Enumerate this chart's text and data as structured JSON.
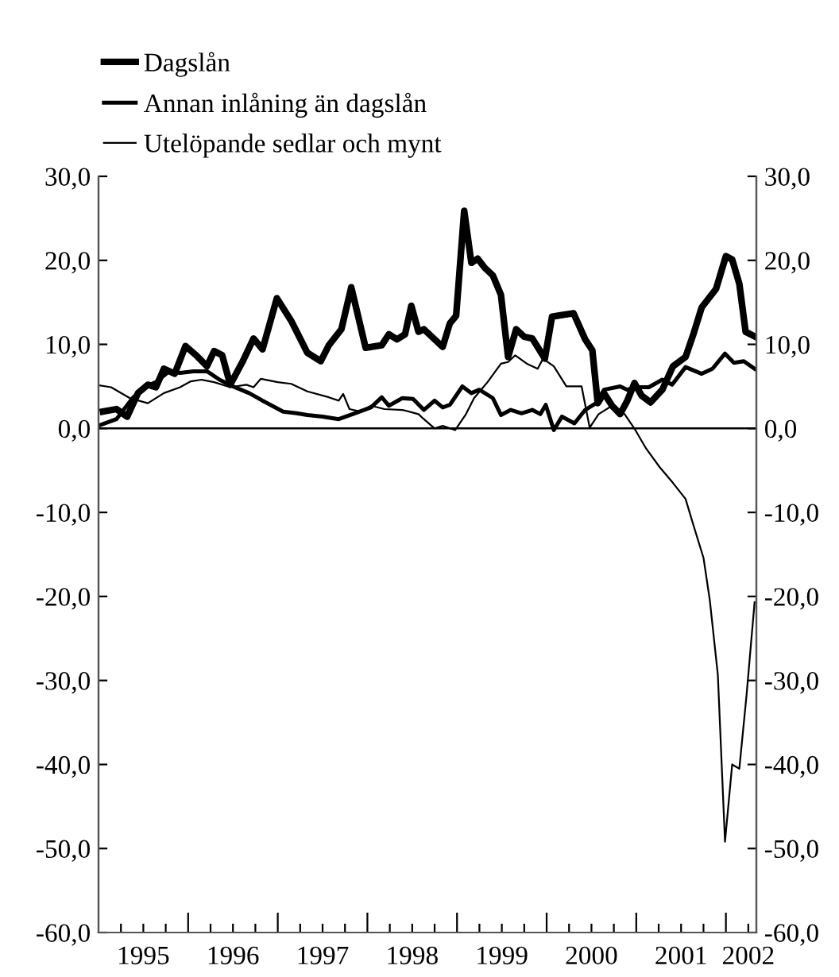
{
  "chart_data": {
    "type": "line",
    "series": [
      {
        "name": "Dagslån",
        "color": "#000000",
        "x": [
          1995.05,
          1995.2,
          1995.32,
          1995.44,
          1995.55,
          1995.64,
          1995.73,
          1995.85,
          1995.97,
          1996.09,
          1996.21,
          1996.29,
          1996.38,
          1996.47,
          1996.61,
          1996.73,
          1996.83,
          1996.99,
          1997.15,
          1997.33,
          1997.48,
          1997.57,
          1997.71,
          1997.82,
          1997.98,
          1998.16,
          1998.24,
          1998.33,
          1998.42,
          1998.49,
          1998.57,
          1998.63,
          1998.84,
          1998.92,
          1998.99,
          1999.08,
          1999.16,
          1999.23,
          1999.31,
          1999.4,
          1999.49,
          1999.57,
          1999.66,
          1999.75,
          1999.84,
          1999.98,
          2000.06,
          2000.17,
          2000.3,
          2000.43,
          2000.51,
          2000.57,
          2000.64,
          2000.73,
          2000.82,
          2000.9,
          2000.98,
          2001.06,
          2001.16,
          2001.29,
          2001.41,
          2001.55,
          2001.64,
          2001.73,
          2001.89,
          2002.0,
          2002.07,
          2002.15,
          2002.22,
          2002.33
        ],
        "values": [
          2.0,
          2.3,
          1.4,
          4.2,
          5.2,
          4.9,
          7.1,
          6.5,
          9.8,
          8.7,
          7.4,
          9.2,
          8.7,
          5.2,
          8.0,
          10.7,
          9.4,
          15.5,
          12.8,
          9.0,
          8.0,
          9.9,
          11.8,
          16.8,
          9.6,
          9.9,
          11.2,
          10.6,
          11.2,
          14.6,
          11.5,
          11.8,
          9.7,
          12.5,
          13.4,
          25.9,
          19.7,
          20.2,
          19.1,
          18.2,
          15.9,
          8.5,
          11.8,
          10.9,
          10.7,
          8.3,
          13.3,
          13.5,
          13.7,
          10.6,
          9.3,
          3.0,
          4.2,
          2.7,
          1.7,
          3.3,
          5.4,
          3.9,
          3.1,
          4.6,
          7.4,
          8.5,
          11.3,
          14.4,
          16.6,
          20.5,
          20.1,
          17.2,
          11.5,
          10.9
        ]
      },
      {
        "name": "Annan inlåning än dagslån",
        "color": "#000000",
        "x": [
          1995.02,
          1995.2,
          1995.38,
          1995.53,
          1995.64,
          1995.79,
          1995.91,
          1996.06,
          1996.21,
          1996.35,
          1996.5,
          1996.68,
          1996.83,
          1997.06,
          1997.21,
          1997.33,
          1997.5,
          1997.68,
          1997.86,
          1998.04,
          1998.16,
          1998.24,
          1998.39,
          1998.51,
          1998.63,
          1998.75,
          1998.84,
          1998.92,
          1999.06,
          1999.16,
          1999.25,
          1999.4,
          1999.49,
          1999.6,
          1999.72,
          1999.84,
          1999.93,
          1999.99,
          2000.08,
          2000.17,
          2000.31,
          2000.43,
          2000.55,
          2000.64,
          2000.82,
          2000.9,
          2000.99,
          2001.14,
          2001.29,
          2001.4,
          2001.55,
          2001.73,
          2001.85,
          2001.99,
          2002.09,
          2002.2,
          2002.32
        ],
        "values": [
          0.4,
          1.1,
          3.6,
          5.0,
          5.5,
          6.8,
          6.6,
          6.8,
          6.8,
          5.8,
          5.0,
          4.2,
          3.3,
          2.0,
          1.8,
          1.6,
          1.4,
          1.1,
          1.8,
          2.5,
          3.7,
          2.7,
          3.6,
          3.5,
          2.2,
          3.3,
          2.5,
          2.8,
          5.0,
          4.2,
          4.6,
          3.6,
          1.6,
          2.2,
          1.8,
          2.2,
          1.7,
          2.8,
          -0.2,
          1.4,
          0.6,
          2.2,
          3.0,
          4.6,
          5.0,
          4.6,
          4.9,
          4.9,
          5.8,
          5.2,
          7.3,
          6.5,
          7.1,
          8.9,
          7.8,
          8.0,
          7.1
        ]
      },
      {
        "name": "Utelöpande sedlar och mynt",
        "color": "#000000",
        "x": [
          1995.02,
          1995.14,
          1995.35,
          1995.55,
          1995.73,
          1995.91,
          1996.03,
          1996.15,
          1996.29,
          1996.47,
          1996.65,
          1996.73,
          1996.81,
          1997.0,
          1997.15,
          1997.33,
          1997.57,
          1997.68,
          1997.73,
          1997.8,
          1997.92,
          1998.04,
          1998.19,
          1998.39,
          1998.57,
          1998.63,
          1998.75,
          1998.84,
          1998.98,
          1999.1,
          1999.19,
          1999.34,
          1999.49,
          1999.57,
          1999.65,
          1999.78,
          1999.9,
          1999.96,
          2000.08,
          2000.22,
          2000.39,
          2000.48,
          2000.58,
          2000.73,
          2000.87,
          2000.99,
          2001.11,
          2001.26,
          2001.41,
          2001.55,
          2001.64,
          2001.75,
          2001.82,
          2001.91,
          2001.99,
          2002.07,
          2002.15,
          2002.23,
          2002.32
        ],
        "values": [
          5.1,
          4.9,
          3.6,
          3.0,
          4.2,
          4.9,
          5.6,
          5.8,
          5.5,
          4.9,
          5.2,
          4.9,
          5.9,
          5.5,
          5.3,
          4.4,
          3.7,
          3.3,
          4.1,
          2.3,
          2.0,
          2.7,
          2.3,
          2.2,
          1.7,
          1.1,
          0.0,
          0.3,
          -0.2,
          1.7,
          3.6,
          5.5,
          7.7,
          7.9,
          8.7,
          7.7,
          7.1,
          8.3,
          7.4,
          5.0,
          5.0,
          0.1,
          1.7,
          2.7,
          1.7,
          -0.2,
          -2.4,
          -4.6,
          -6.5,
          -8.4,
          -11.6,
          -15.4,
          -20.4,
          -29.3,
          -49.2,
          -40.0,
          -40.5,
          -31.8,
          -20.7
        ]
      }
    ],
    "xlim": [
      1995,
      2002.34
    ],
    "xticks": [
      {
        "value": 1995.25,
        "label": null
      },
      {
        "value": 1995.5,
        "label": "1995"
      },
      {
        "value": 1995.75,
        "label": null
      },
      {
        "value": 1996,
        "label": null
      },
      {
        "value": 1996.25,
        "label": null
      },
      {
        "value": 1996.5,
        "label": "1996"
      },
      {
        "value": 1996.75,
        "label": null
      },
      {
        "value": 1997,
        "label": null
      },
      {
        "value": 1997.25,
        "label": null
      },
      {
        "value": 1997.5,
        "label": "1997"
      },
      {
        "value": 1997.75,
        "label": null
      },
      {
        "value": 1998,
        "label": null
      },
      {
        "value": 1998.25,
        "label": null
      },
      {
        "value": 1998.5,
        "label": "1998"
      },
      {
        "value": 1998.75,
        "label": null
      },
      {
        "value": 1999,
        "label": null
      },
      {
        "value": 1999.25,
        "label": null
      },
      {
        "value": 1999.5,
        "label": "1999"
      },
      {
        "value": 1999.75,
        "label": null
      },
      {
        "value": 2000,
        "label": null
      },
      {
        "value": 2000.25,
        "label": null
      },
      {
        "value": 2000.5,
        "label": "2000"
      },
      {
        "value": 2000.75,
        "label": null
      },
      {
        "value": 2001,
        "label": null
      },
      {
        "value": 2001.25,
        "label": null
      },
      {
        "value": 2001.5,
        "label": "2001"
      },
      {
        "value": 2001.75,
        "label": null
      },
      {
        "value": 2002,
        "label": null
      },
      {
        "value": 2002.25,
        "label": "2002"
      }
    ],
    "ylim": [
      -60,
      30
    ],
    "yticks": [
      {
        "value": -60,
        "label": "-60,0"
      },
      {
        "value": -50,
        "label": "-50,0"
      },
      {
        "value": -40,
        "label": "-40,0"
      },
      {
        "value": -30,
        "label": "-30,0"
      },
      {
        "value": -20,
        "label": "-20,0"
      },
      {
        "value": -10,
        "label": "-10,0"
      },
      {
        "value": 0,
        "label": "0,0"
      },
      {
        "value": 10,
        "label": "10,0"
      },
      {
        "value": 20,
        "label": "20,0"
      },
      {
        "value": 30,
        "label": "30,0"
      }
    ],
    "y2lim": [
      -60,
      30
    ],
    "y2ticks": [
      {
        "value": -60,
        "label": "-60,0"
      },
      {
        "value": -50,
        "label": "-50,0"
      },
      {
        "value": -40,
        "label": "-40,0"
      },
      {
        "value": -30,
        "label": "-30,0"
      },
      {
        "value": -20,
        "label": "-20,0"
      },
      {
        "value": -10,
        "label": "-10,0"
      },
      {
        "value": 0,
        "label": "0,0"
      },
      {
        "value": 10,
        "label": "10,0"
      },
      {
        "value": 20,
        "label": "20,0"
      },
      {
        "value": 30,
        "label": "30,0"
      }
    ],
    "ref_lines": [
      {
        "axis": "y",
        "value": 0,
        "color": "#000000"
      }
    ],
    "grid": false,
    "legend": "top left",
    "line_style": "solid"
  }
}
